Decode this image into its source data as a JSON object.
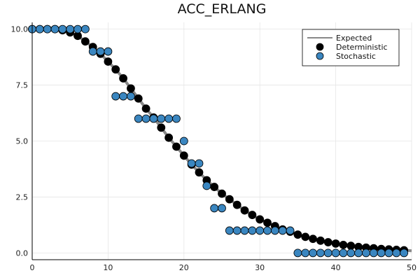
{
  "chart_data": {
    "type": "scatter",
    "title": "ACC_ERLANG",
    "xlabel": "",
    "ylabel": "",
    "xlim": [
      0,
      50
    ],
    "ylim": [
      -0.3,
      10.3
    ],
    "x_ticks": [
      "0",
      "10",
      "20",
      "30",
      "40",
      "50"
    ],
    "y_ticks": [
      "0.0",
      "2.5",
      "5.0",
      "7.5",
      "10.0"
    ],
    "grid": true,
    "legend_position": "top-right",
    "series": [
      {
        "name": "Expected",
        "kind": "line",
        "color": "#888888",
        "x": [
          0,
          1,
          2,
          3,
          4,
          5,
          6,
          7,
          8,
          9,
          10,
          11,
          12,
          13,
          14,
          15,
          16,
          17,
          18,
          19,
          20,
          21,
          22,
          23,
          24,
          25,
          26,
          27,
          28,
          29,
          30,
          31,
          32,
          33,
          34,
          35,
          36,
          37,
          38,
          39,
          40,
          41,
          42,
          43,
          44,
          45,
          46,
          47,
          48,
          49,
          50
        ],
        "y": [
          10.0,
          10.0,
          10.0,
          10.0,
          9.95,
          9.85,
          9.7,
          9.45,
          9.2,
          8.9,
          8.55,
          8.2,
          7.8,
          7.35,
          6.9,
          6.45,
          6.05,
          5.6,
          5.15,
          4.75,
          4.35,
          3.95,
          3.6,
          3.25,
          2.95,
          2.65,
          2.4,
          2.15,
          1.9,
          1.7,
          1.5,
          1.35,
          1.2,
          1.05,
          0.95,
          0.82,
          0.72,
          0.63,
          0.55,
          0.48,
          0.42,
          0.36,
          0.32,
          0.27,
          0.24,
          0.21,
          0.18,
          0.16,
          0.14,
          0.12,
          0.1
        ]
      },
      {
        "name": "Deterministic",
        "kind": "scatter",
        "color": "#000000",
        "x": [
          0,
          1,
          2,
          3,
          4,
          5,
          6,
          7,
          8,
          9,
          10,
          11,
          12,
          13,
          14,
          15,
          16,
          17,
          18,
          19,
          20,
          21,
          22,
          23,
          24,
          25,
          26,
          27,
          28,
          29,
          30,
          31,
          32,
          33,
          34,
          35,
          36,
          37,
          38,
          39,
          40,
          41,
          42,
          43,
          44,
          45,
          46,
          47,
          48,
          49
        ],
        "y": [
          10.0,
          10.0,
          10.0,
          10.0,
          9.95,
          9.85,
          9.7,
          9.45,
          9.2,
          8.9,
          8.55,
          8.2,
          7.8,
          7.35,
          6.9,
          6.45,
          6.05,
          5.6,
          5.15,
          4.75,
          4.35,
          3.95,
          3.6,
          3.25,
          2.95,
          2.65,
          2.4,
          2.15,
          1.9,
          1.7,
          1.5,
          1.35,
          1.2,
          1.05,
          0.95,
          0.82,
          0.72,
          0.63,
          0.55,
          0.48,
          0.42,
          0.36,
          0.32,
          0.27,
          0.24,
          0.21,
          0.18,
          0.16,
          0.14,
          0.12
        ]
      },
      {
        "name": "Stochastic",
        "kind": "scatter",
        "color": "#3a86c0",
        "x": [
          0,
          1,
          2,
          3,
          4,
          5,
          6,
          7,
          8,
          9,
          10,
          11,
          12,
          13,
          14,
          15,
          16,
          17,
          18,
          19,
          20,
          21,
          22,
          23,
          24,
          25,
          26,
          27,
          28,
          29,
          30,
          31,
          32,
          33,
          34,
          35,
          36,
          37,
          38,
          39,
          40,
          41,
          42,
          43,
          44,
          45,
          46,
          47,
          48,
          49
        ],
        "y": [
          10,
          10,
          10,
          10,
          10,
          10,
          10,
          10,
          9,
          9,
          9,
          7,
          7,
          7,
          6,
          6,
          6,
          6,
          6,
          6,
          5,
          4,
          4,
          3,
          2,
          2,
          1,
          1,
          1,
          1,
          1,
          1,
          1,
          1,
          1,
          0,
          0,
          0,
          0,
          0,
          0,
          0,
          0,
          0,
          0,
          0,
          0,
          0,
          0,
          0
        ]
      }
    ]
  }
}
